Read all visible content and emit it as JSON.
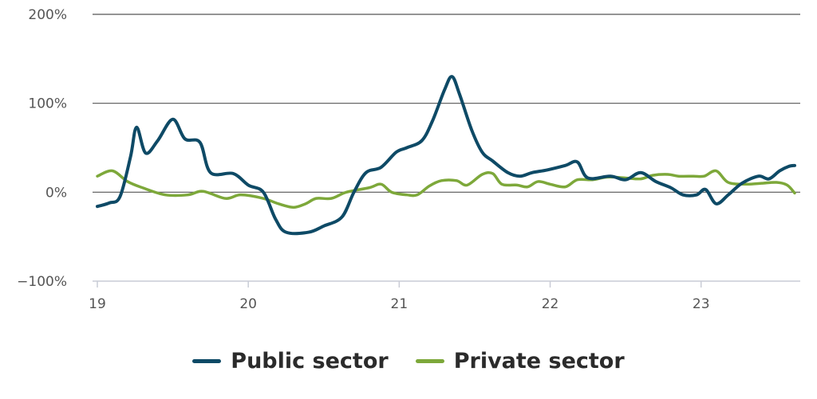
{
  "chart_data": {
    "type": "line",
    "title": "",
    "xlabel": "",
    "ylabel": "",
    "xlim": [
      2019.0,
      2023.62
    ],
    "ylim": [
      -100,
      200
    ],
    "x_ticks": [
      2019,
      2020,
      2021,
      2022,
      2023
    ],
    "x_tick_labels": [
      "19",
      "20",
      "21",
      "22",
      "23"
    ],
    "y_ticks": [
      -100,
      0,
      100,
      200
    ],
    "y_tick_labels": [
      "−100%",
      "0%",
      "100%",
      "200%"
    ],
    "grid": "horizontal",
    "legend": "bottom-center",
    "series": [
      {
        "name": "Public sector",
        "color": "#0e4a66",
        "points": [
          [
            2019.0,
            -16
          ],
          [
            2019.08,
            -12
          ],
          [
            2019.15,
            -5
          ],
          [
            2019.22,
            40
          ],
          [
            2019.26,
            73
          ],
          [
            2019.32,
            44
          ],
          [
            2019.4,
            58
          ],
          [
            2019.5,
            82
          ],
          [
            2019.58,
            60
          ],
          [
            2019.68,
            56
          ],
          [
            2019.75,
            22
          ],
          [
            2019.9,
            21
          ],
          [
            2020.0,
            8
          ],
          [
            2020.1,
            0
          ],
          [
            2020.18,
            -30
          ],
          [
            2020.25,
            -45
          ],
          [
            2020.4,
            -45
          ],
          [
            2020.5,
            -38
          ],
          [
            2020.62,
            -28
          ],
          [
            2020.7,
            0
          ],
          [
            2020.78,
            22
          ],
          [
            2020.88,
            28
          ],
          [
            2020.98,
            45
          ],
          [
            2021.05,
            50
          ],
          [
            2021.15,
            58
          ],
          [
            2021.22,
            80
          ],
          [
            2021.3,
            115
          ],
          [
            2021.35,
            130
          ],
          [
            2021.4,
            110
          ],
          [
            2021.48,
            70
          ],
          [
            2021.55,
            45
          ],
          [
            2021.62,
            35
          ],
          [
            2021.72,
            22
          ],
          [
            2021.8,
            18
          ],
          [
            2021.88,
            22
          ],
          [
            2021.98,
            25
          ],
          [
            2022.1,
            30
          ],
          [
            2022.18,
            34
          ],
          [
            2022.25,
            16
          ],
          [
            2022.4,
            18
          ],
          [
            2022.5,
            14
          ],
          [
            2022.6,
            22
          ],
          [
            2022.7,
            12
          ],
          [
            2022.8,
            5
          ],
          [
            2022.88,
            -3
          ],
          [
            2022.97,
            -3
          ],
          [
            2023.03,
            3
          ],
          [
            2023.1,
            -13
          ],
          [
            2023.18,
            -3
          ],
          [
            2023.27,
            10
          ],
          [
            2023.38,
            18
          ],
          [
            2023.45,
            15
          ],
          [
            2023.52,
            24
          ],
          [
            2023.58,
            29
          ],
          [
            2023.62,
            30
          ]
        ]
      },
      {
        "name": "Private sector",
        "color": "#7da83a",
        "points": [
          [
            2019.0,
            18
          ],
          [
            2019.1,
            24
          ],
          [
            2019.2,
            12
          ],
          [
            2019.3,
            5
          ],
          [
            2019.45,
            -3
          ],
          [
            2019.6,
            -3
          ],
          [
            2019.7,
            1
          ],
          [
            2019.85,
            -7
          ],
          [
            2019.95,
            -3
          ],
          [
            2020.1,
            -7
          ],
          [
            2020.2,
            -13
          ],
          [
            2020.3,
            -17
          ],
          [
            2020.38,
            -13
          ],
          [
            2020.45,
            -7
          ],
          [
            2020.55,
            -7
          ],
          [
            2020.65,
            0
          ],
          [
            2020.8,
            5
          ],
          [
            2020.88,
            9
          ],
          [
            2020.95,
            0
          ],
          [
            2021.05,
            -3
          ],
          [
            2021.12,
            -3
          ],
          [
            2021.2,
            7
          ],
          [
            2021.28,
            13
          ],
          [
            2021.38,
            13
          ],
          [
            2021.45,
            8
          ],
          [
            2021.55,
            20
          ],
          [
            2021.62,
            21
          ],
          [
            2021.68,
            9
          ],
          [
            2021.78,
            8
          ],
          [
            2021.85,
            6
          ],
          [
            2021.92,
            12
          ],
          [
            2022.0,
            9
          ],
          [
            2022.1,
            6
          ],
          [
            2022.18,
            14
          ],
          [
            2022.28,
            14
          ],
          [
            2022.38,
            17
          ],
          [
            2022.5,
            16
          ],
          [
            2022.6,
            15
          ],
          [
            2022.68,
            19
          ],
          [
            2022.78,
            20
          ],
          [
            2022.85,
            18
          ],
          [
            2022.95,
            18
          ],
          [
            2023.02,
            18
          ],
          [
            2023.1,
            24
          ],
          [
            2023.18,
            11
          ],
          [
            2023.3,
            9
          ],
          [
            2023.4,
            10
          ],
          [
            2023.5,
            11
          ],
          [
            2023.57,
            8
          ],
          [
            2023.62,
            -1
          ]
        ]
      }
    ]
  }
}
